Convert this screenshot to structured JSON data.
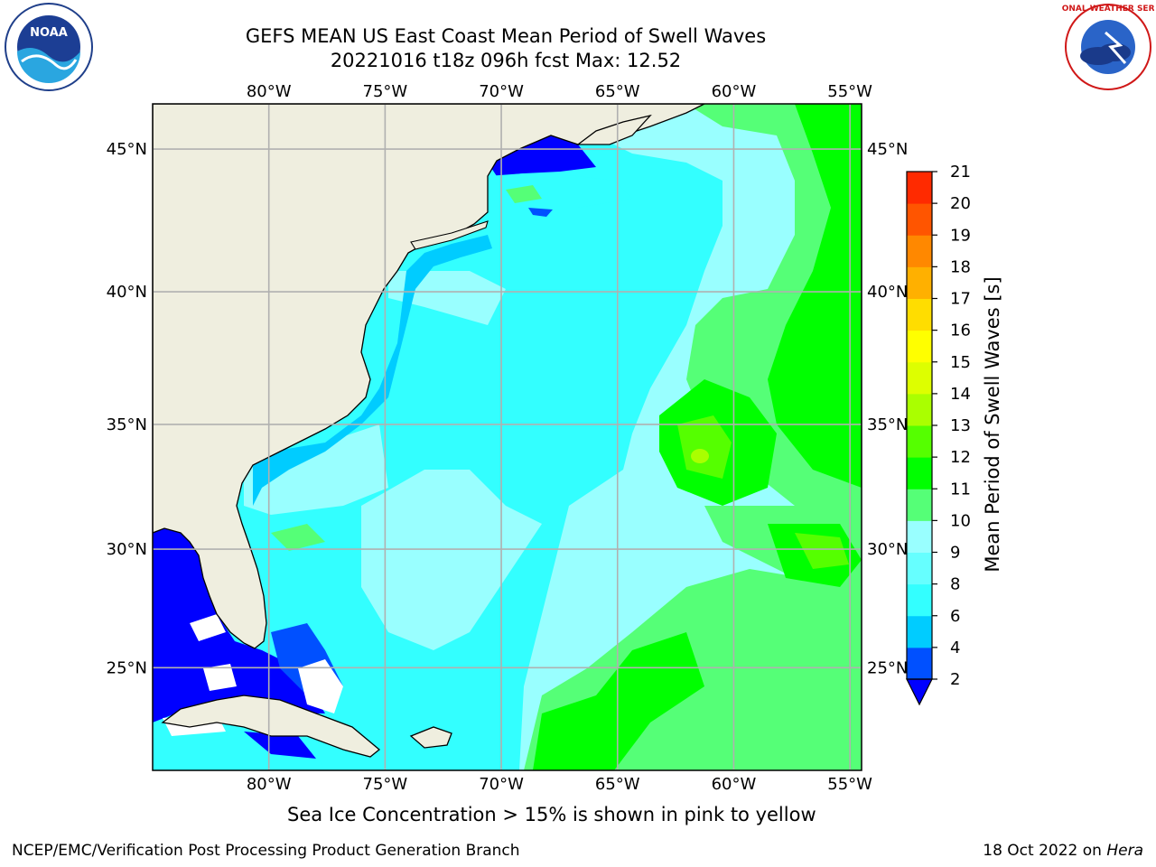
{
  "title": {
    "line1": "GEFS MEAN US East Coast Mean Period of Swell Waves",
    "line2": "20221016 t18z 096h fcst   Max: 12.52"
  },
  "map": {
    "lon_labels": [
      "80°W",
      "75°W",
      "70°W",
      "65°W",
      "60°W",
      "55°W"
    ],
    "lat_labels": [
      "45°N",
      "40°N",
      "35°N",
      "30°N",
      "25°N"
    ],
    "lon_range": [
      -85,
      -54.5
    ],
    "lat_range": [
      20.5,
      46.5
    ],
    "land_color": "#efeedf",
    "grid_color": "#b0b0b0"
  },
  "colorbar": {
    "label": "Mean Period of Swell Waves [s]",
    "ticks": [
      "2",
      "4",
      "6",
      "8",
      "9",
      "10",
      "11",
      "12",
      "13",
      "14",
      "15",
      "16",
      "17",
      "18",
      "19",
      "20",
      "21"
    ],
    "colors": [
      "#0050ff",
      "#00ccff",
      "#33ffff",
      "#66ffff",
      "#99ffff",
      "#55ff77",
      "#00ff00",
      "#55ff00",
      "#aaff00",
      "#ddff00",
      "#ffff00",
      "#ffdd00",
      "#ffb000",
      "#ff8800",
      "#ff5500",
      "#ff2a00",
      "#ff0000"
    ],
    "under_color": "#0000ff"
  },
  "caption": "Sea Ice Concentration > 15% is shown in pink to yellow",
  "footer": {
    "left": "NCEP/EMC/Verification Post Processing Product Generation Branch",
    "right_prefix": "18 Oct 2022 on ",
    "right_host": "Hera"
  },
  "logos": {
    "left": "NOAA",
    "right": "NATIONAL WEATHER SERVICE"
  }
}
